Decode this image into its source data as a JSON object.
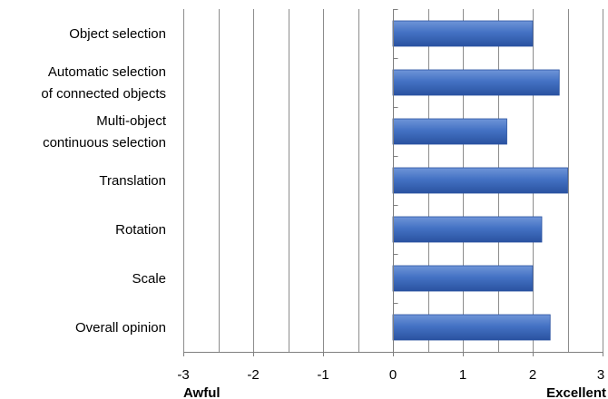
{
  "chart_data": {
    "type": "bar",
    "orientation": "horizontal",
    "categories": [
      [
        "Object selection"
      ],
      [
        "Automatic selection",
        "of connected objects"
      ],
      [
        "Multi-object",
        "continuous selection"
      ],
      [
        "Translation"
      ],
      [
        "Rotation"
      ],
      [
        "Scale"
      ],
      [
        "Overall opinion"
      ]
    ],
    "values": [
      2.0,
      2.38,
      1.63,
      2.5,
      2.13,
      2.0,
      2.25
    ],
    "xlim": [
      -3,
      3
    ],
    "xticks": [
      -3,
      -2,
      -1,
      0,
      1,
      2,
      3
    ],
    "x_gridlines": [
      -3,
      -2.5,
      -2,
      -1.5,
      -1,
      -0.5,
      0,
      0.5,
      1,
      1.5,
      2,
      2.5,
      3
    ],
    "xlabel_left": "Awful",
    "xlabel_right": "Excellent",
    "title": "",
    "grid": true,
    "colors": {
      "bar": "#4472c4",
      "bar_dark": "#2a52a0",
      "bar_light": "#6f95d8",
      "grid": "#8c8c8c",
      "axis": "#7f7f7f"
    }
  }
}
